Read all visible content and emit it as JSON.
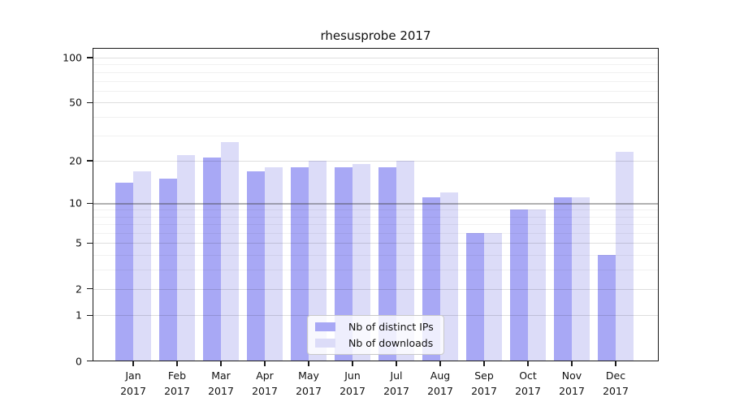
{
  "chart_data": {
    "type": "bar",
    "title": "rhesusprobe 2017",
    "categories": [
      "Jan",
      "Feb",
      "Mar",
      "Apr",
      "May",
      "Jun",
      "Jul",
      "Aug",
      "Sep",
      "Oct",
      "Nov",
      "Dec"
    ],
    "x_year": "2017",
    "series": [
      {
        "name": "Nb of distinct IPs",
        "color": "#a8a8f5",
        "values": [
          14,
          15,
          21,
          17,
          18,
          18,
          18,
          11,
          6,
          9,
          11,
          4
        ]
      },
      {
        "name": "Nb of downloads",
        "color": "#dcdcf8",
        "values": [
          17,
          22,
          27,
          18,
          20,
          19,
          20,
          12,
          6,
          9,
          11,
          23
        ]
      }
    ],
    "yscale": "log1p",
    "ylim": [
      0,
      116
    ],
    "y_ticks": [
      100,
      50,
      20,
      10,
      5,
      2,
      1,
      0
    ],
    "y_minor_gridlines": [
      3,
      4,
      6,
      7,
      8,
      9,
      30,
      40,
      60,
      70,
      80,
      90
    ],
    "y_emphasized_gridline": 10,
    "grid": true,
    "legend_position": "bottom-center",
    "xlabel": "",
    "ylabel": ""
  }
}
